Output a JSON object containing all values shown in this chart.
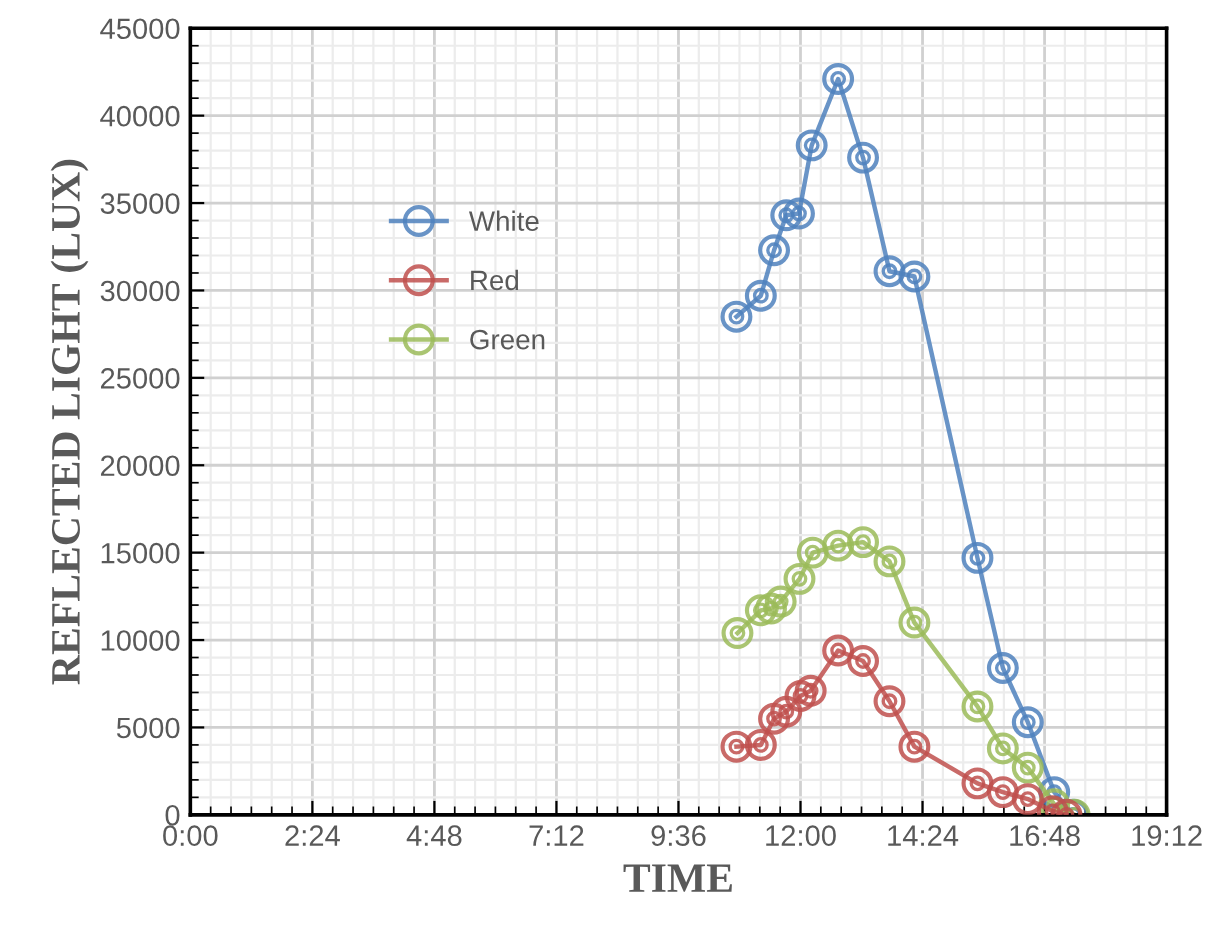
{
  "chart_data": {
    "type": "line",
    "xlabel": "TIME",
    "ylabel": "REFLECTED LIGHT (LUX)",
    "xlim": [
      0,
      19.2
    ],
    "ylim": [
      0,
      45000
    ],
    "xticks": [
      {
        "value": 0,
        "label": "0:00"
      },
      {
        "value": 2.4,
        "label": "2:24"
      },
      {
        "value": 4.8,
        "label": "4:48"
      },
      {
        "value": 7.2,
        "label": "7:12"
      },
      {
        "value": 9.6,
        "label": "9:36"
      },
      {
        "value": 12,
        "label": "12:00"
      },
      {
        "value": 14.4,
        "label": "14:24"
      },
      {
        "value": 16.8,
        "label": "16:48"
      },
      {
        "value": 19.2,
        "label": "19:12"
      }
    ],
    "yticks": [
      0,
      5000,
      10000,
      15000,
      20000,
      25000,
      30000,
      35000,
      40000,
      45000
    ],
    "grid": true,
    "legend": "top left",
    "marker": "circle",
    "line_style": "solid",
    "series": [
      {
        "name": "White",
        "color": "#4f81bd",
        "x": [
          10.74,
          11.22,
          11.48,
          11.72,
          11.97,
          12.22,
          12.74,
          13.23,
          13.75,
          14.24,
          15.48,
          15.98,
          16.47,
          16.99,
          17.36
        ],
        "values": [
          28500,
          29700,
          32300,
          34300,
          34400,
          38300,
          42100,
          37600,
          31100,
          30800,
          14700,
          8400,
          5300,
          1300,
          0
        ]
      },
      {
        "name": "Red",
        "color": "#c0504d",
        "x": [
          10.74,
          11.22,
          11.48,
          11.72,
          12.0,
          12.2,
          12.74,
          13.23,
          13.75,
          14.24,
          15.48,
          15.98,
          16.47,
          16.96,
          17.23
        ],
        "values": [
          3900,
          4000,
          5500,
          5900,
          6800,
          7100,
          9400,
          8800,
          6500,
          3900,
          1800,
          1300,
          900,
          200,
          0
        ]
      },
      {
        "name": "Green",
        "color": "#9bbb59",
        "x": [
          10.76,
          11.22,
          11.42,
          11.61,
          11.98,
          12.24,
          12.74,
          13.23,
          13.75,
          14.24,
          15.48,
          15.98,
          16.47,
          16.99,
          17.39
        ],
        "values": [
          10400,
          11700,
          11800,
          12200,
          13500,
          15000,
          15400,
          15600,
          14500,
          11000,
          6200,
          3800,
          2700,
          600,
          0
        ]
      }
    ]
  }
}
